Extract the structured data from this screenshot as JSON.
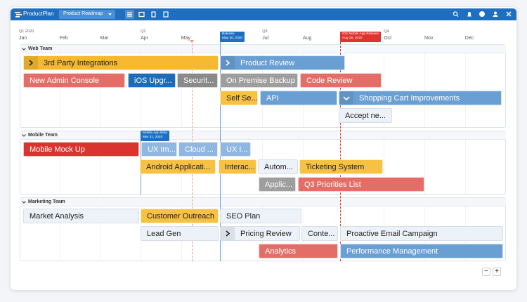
{
  "header": {
    "logo": "ProductPlan",
    "roadmap": "Product Roadmap"
  },
  "timeline": {
    "quarters": [
      "Q1 2020",
      "Q2",
      "Q3",
      "Q4"
    ],
    "months": [
      "Jan",
      "Feb",
      "Mar",
      "Apr",
      "May",
      null,
      "Jul",
      "Aug",
      null,
      "Oct",
      "Nov",
      "Dec"
    ]
  },
  "milestones": [
    {
      "title": "Release",
      "date": "May 30, 2020",
      "color": "#1e6fc0"
    },
    {
      "title": "iOS Mobile App Release",
      "date": "Aug 28, 2020",
      "color": "#e0322e"
    },
    {
      "title": "Mobile App Beta",
      "date": "Mar 31, 2020",
      "color": "#1e6fc0"
    }
  ],
  "lanes": [
    {
      "name": "Web Team",
      "bars": [
        {
          "label": "3rd Party Integrations",
          "color": "#f5b82e"
        },
        {
          "label": "Product Review",
          "color": "#6a9fd4"
        },
        {
          "label": "New Admin Console",
          "color": "#e46e67"
        },
        {
          "label": "iOS Upgr...",
          "color": "#1b6dba"
        },
        {
          "label": "Securit...",
          "color": "#8a8a8a"
        },
        {
          "label": "On Premise Backup",
          "color": "#9e9e9e"
        },
        {
          "label": "Code Review",
          "color": "#e46e67"
        },
        {
          "label": "Self Se...",
          "color": "#f7c143"
        },
        {
          "label": "API",
          "color": "#6a9fd4"
        },
        {
          "label": "Shopping Cart Improvements",
          "color": "#6a9fd4"
        },
        {
          "label": "Accept ne...",
          "color": "#edf2f8"
        }
      ]
    },
    {
      "name": "Mobile Team",
      "bars": [
        {
          "label": "Mobile Mock Up",
          "color": "#d9352e"
        },
        {
          "label": "UX Im...",
          "color": "#8fb7e0"
        },
        {
          "label": "Cloud ...",
          "color": "#8fb7e0"
        },
        {
          "label": "UX I...",
          "color": "#8fb7e0"
        },
        {
          "label": "Android Applicati...",
          "color": "#f7c143"
        },
        {
          "label": "Interac...",
          "color": "#f7c143"
        },
        {
          "label": "Autom...",
          "color": "#edf2f8"
        },
        {
          "label": "Ticketing System",
          "color": "#f7c143"
        },
        {
          "label": "Applic...",
          "color": "#9e9e9e"
        },
        {
          "label": "Q3 Priorities List",
          "color": "#e46e67"
        }
      ]
    },
    {
      "name": "Marketing Team",
      "bars": [
        {
          "label": "Market Analysis",
          "color": "#edf2f8"
        },
        {
          "label": "Customer Outreach",
          "color": "#f7c143"
        },
        {
          "label": "SEO Plan",
          "color": "#edf2f8"
        },
        {
          "label": "Lead Gen",
          "color": "#edf2f8"
        },
        {
          "label": "Pricing Review",
          "color": "#edf2f8"
        },
        {
          "label": "Conte...",
          "color": "#edf2f8"
        },
        {
          "label": "Proactive Email Campaign",
          "color": "#edf2f8"
        },
        {
          "label": "Analytics",
          "color": "#e46e67"
        },
        {
          "label": "Performance Management",
          "color": "#6a9fd4"
        }
      ]
    }
  ],
  "zoom": [
    "−",
    "+"
  ]
}
